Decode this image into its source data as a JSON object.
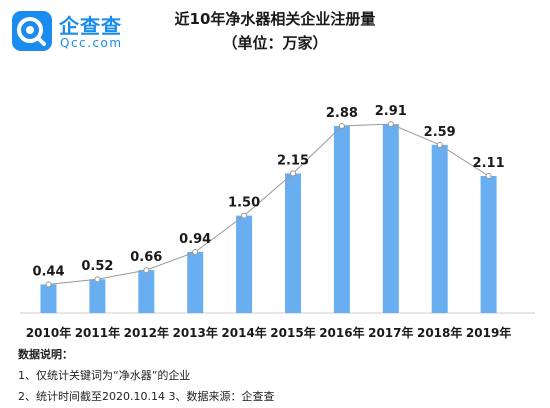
{
  "logo": {
    "name_cn": "企查查",
    "name_en": "Qcc.com"
  },
  "chart_data": {
    "type": "bar",
    "title": "近10年净水器相关企业注册量",
    "subtitle": "（单位：万家）",
    "categories": [
      "2010年",
      "2011年",
      "2012年",
      "2013年",
      "2014年",
      "2015年",
      "2016年",
      "2017年",
      "2018年",
      "2019年"
    ],
    "values": [
      0.44,
      0.52,
      0.66,
      0.94,
      1.5,
      2.15,
      2.88,
      2.91,
      2.59,
      2.11
    ],
    "value_labels": [
      "0.44",
      "0.52",
      "0.66",
      "0.94",
      "1.50",
      "2.15",
      "2.88",
      "2.91",
      "2.59",
      "2.11"
    ],
    "overlay": "line",
    "ylim": [
      0,
      3.25
    ],
    "grid": false,
    "legend": "none",
    "colors": {
      "bar": "#6aaef2",
      "line": "#999999",
      "marker": "#ffffff"
    }
  },
  "notes": {
    "heading": "数据说明：",
    "line1": "1、仅统计关键词为“净水器”的企业",
    "line2": "2、统计时间截至2020.10.14 3、数据来源：企查查"
  }
}
